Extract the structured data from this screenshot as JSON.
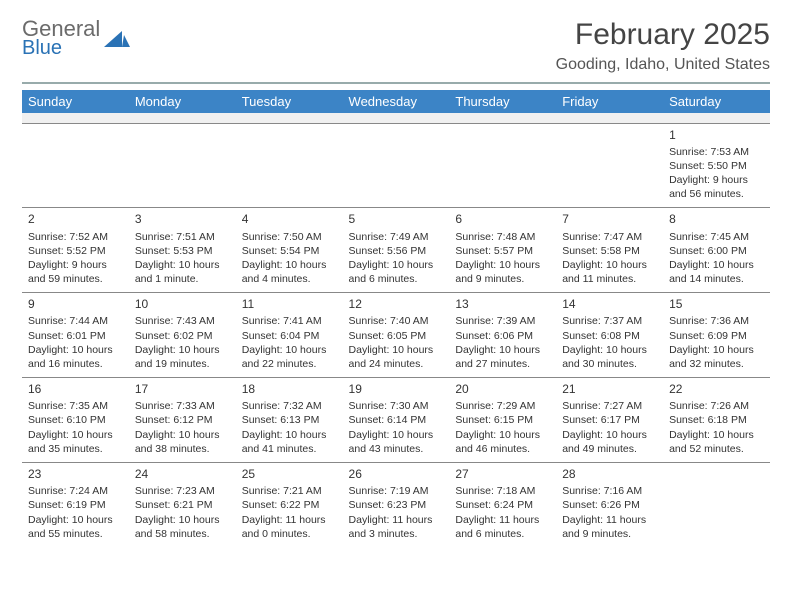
{
  "logo": {
    "word1": "General",
    "word2": "Blue",
    "color_word1": "#6b6b6b",
    "color_word2": "#2a72b5",
    "mark_color": "#2a72b5"
  },
  "title": "February 2025",
  "location": "Gooding, Idaho, United States",
  "colors": {
    "header_bg": "#3c84c6",
    "header_fg": "#ffffff",
    "band_bg": "#f0f0f0",
    "rule": "#556",
    "cell_border": "#888888",
    "text": "#333333",
    "background": "#ffffff"
  },
  "typography": {
    "title_fontsize": 30,
    "location_fontsize": 16,
    "header_fontsize": 13,
    "cell_fontsize": 10.5
  },
  "day_headers": [
    "Sunday",
    "Monday",
    "Tuesday",
    "Wednesday",
    "Thursday",
    "Friday",
    "Saturday"
  ],
  "weeks": [
    [
      {
        "n": "",
        "sunrise": "",
        "sunset": "",
        "daylight": "",
        "empty": true
      },
      {
        "n": "",
        "sunrise": "",
        "sunset": "",
        "daylight": "",
        "empty": true
      },
      {
        "n": "",
        "sunrise": "",
        "sunset": "",
        "daylight": "",
        "empty": true
      },
      {
        "n": "",
        "sunrise": "",
        "sunset": "",
        "daylight": "",
        "empty": true
      },
      {
        "n": "",
        "sunrise": "",
        "sunset": "",
        "daylight": "",
        "empty": true
      },
      {
        "n": "",
        "sunrise": "",
        "sunset": "",
        "daylight": "",
        "empty": true
      },
      {
        "n": "1",
        "sunrise": "Sunrise: 7:53 AM",
        "sunset": "Sunset: 5:50 PM",
        "daylight": "Daylight: 9 hours and 56 minutes."
      }
    ],
    [
      {
        "n": "2",
        "sunrise": "Sunrise: 7:52 AM",
        "sunset": "Sunset: 5:52 PM",
        "daylight": "Daylight: 9 hours and 59 minutes."
      },
      {
        "n": "3",
        "sunrise": "Sunrise: 7:51 AM",
        "sunset": "Sunset: 5:53 PM",
        "daylight": "Daylight: 10 hours and 1 minute."
      },
      {
        "n": "4",
        "sunrise": "Sunrise: 7:50 AM",
        "sunset": "Sunset: 5:54 PM",
        "daylight": "Daylight: 10 hours and 4 minutes."
      },
      {
        "n": "5",
        "sunrise": "Sunrise: 7:49 AM",
        "sunset": "Sunset: 5:56 PM",
        "daylight": "Daylight: 10 hours and 6 minutes."
      },
      {
        "n": "6",
        "sunrise": "Sunrise: 7:48 AM",
        "sunset": "Sunset: 5:57 PM",
        "daylight": "Daylight: 10 hours and 9 minutes."
      },
      {
        "n": "7",
        "sunrise": "Sunrise: 7:47 AM",
        "sunset": "Sunset: 5:58 PM",
        "daylight": "Daylight: 10 hours and 11 minutes."
      },
      {
        "n": "8",
        "sunrise": "Sunrise: 7:45 AM",
        "sunset": "Sunset: 6:00 PM",
        "daylight": "Daylight: 10 hours and 14 minutes."
      }
    ],
    [
      {
        "n": "9",
        "sunrise": "Sunrise: 7:44 AM",
        "sunset": "Sunset: 6:01 PM",
        "daylight": "Daylight: 10 hours and 16 minutes."
      },
      {
        "n": "10",
        "sunrise": "Sunrise: 7:43 AM",
        "sunset": "Sunset: 6:02 PM",
        "daylight": "Daylight: 10 hours and 19 minutes."
      },
      {
        "n": "11",
        "sunrise": "Sunrise: 7:41 AM",
        "sunset": "Sunset: 6:04 PM",
        "daylight": "Daylight: 10 hours and 22 minutes."
      },
      {
        "n": "12",
        "sunrise": "Sunrise: 7:40 AM",
        "sunset": "Sunset: 6:05 PM",
        "daylight": "Daylight: 10 hours and 24 minutes."
      },
      {
        "n": "13",
        "sunrise": "Sunrise: 7:39 AM",
        "sunset": "Sunset: 6:06 PM",
        "daylight": "Daylight: 10 hours and 27 minutes."
      },
      {
        "n": "14",
        "sunrise": "Sunrise: 7:37 AM",
        "sunset": "Sunset: 6:08 PM",
        "daylight": "Daylight: 10 hours and 30 minutes."
      },
      {
        "n": "15",
        "sunrise": "Sunrise: 7:36 AM",
        "sunset": "Sunset: 6:09 PM",
        "daylight": "Daylight: 10 hours and 32 minutes."
      }
    ],
    [
      {
        "n": "16",
        "sunrise": "Sunrise: 7:35 AM",
        "sunset": "Sunset: 6:10 PM",
        "daylight": "Daylight: 10 hours and 35 minutes."
      },
      {
        "n": "17",
        "sunrise": "Sunrise: 7:33 AM",
        "sunset": "Sunset: 6:12 PM",
        "daylight": "Daylight: 10 hours and 38 minutes."
      },
      {
        "n": "18",
        "sunrise": "Sunrise: 7:32 AM",
        "sunset": "Sunset: 6:13 PM",
        "daylight": "Daylight: 10 hours and 41 minutes."
      },
      {
        "n": "19",
        "sunrise": "Sunrise: 7:30 AM",
        "sunset": "Sunset: 6:14 PM",
        "daylight": "Daylight: 10 hours and 43 minutes."
      },
      {
        "n": "20",
        "sunrise": "Sunrise: 7:29 AM",
        "sunset": "Sunset: 6:15 PM",
        "daylight": "Daylight: 10 hours and 46 minutes."
      },
      {
        "n": "21",
        "sunrise": "Sunrise: 7:27 AM",
        "sunset": "Sunset: 6:17 PM",
        "daylight": "Daylight: 10 hours and 49 minutes."
      },
      {
        "n": "22",
        "sunrise": "Sunrise: 7:26 AM",
        "sunset": "Sunset: 6:18 PM",
        "daylight": "Daylight: 10 hours and 52 minutes."
      }
    ],
    [
      {
        "n": "23",
        "sunrise": "Sunrise: 7:24 AM",
        "sunset": "Sunset: 6:19 PM",
        "daylight": "Daylight: 10 hours and 55 minutes."
      },
      {
        "n": "24",
        "sunrise": "Sunrise: 7:23 AM",
        "sunset": "Sunset: 6:21 PM",
        "daylight": "Daylight: 10 hours and 58 minutes."
      },
      {
        "n": "25",
        "sunrise": "Sunrise: 7:21 AM",
        "sunset": "Sunset: 6:22 PM",
        "daylight": "Daylight: 11 hours and 0 minutes."
      },
      {
        "n": "26",
        "sunrise": "Sunrise: 7:19 AM",
        "sunset": "Sunset: 6:23 PM",
        "daylight": "Daylight: 11 hours and 3 minutes."
      },
      {
        "n": "27",
        "sunrise": "Sunrise: 7:18 AM",
        "sunset": "Sunset: 6:24 PM",
        "daylight": "Daylight: 11 hours and 6 minutes."
      },
      {
        "n": "28",
        "sunrise": "Sunrise: 7:16 AM",
        "sunset": "Sunset: 6:26 PM",
        "daylight": "Daylight: 11 hours and 9 minutes."
      },
      {
        "n": "",
        "sunrise": "",
        "sunset": "",
        "daylight": "",
        "empty": true
      }
    ]
  ]
}
